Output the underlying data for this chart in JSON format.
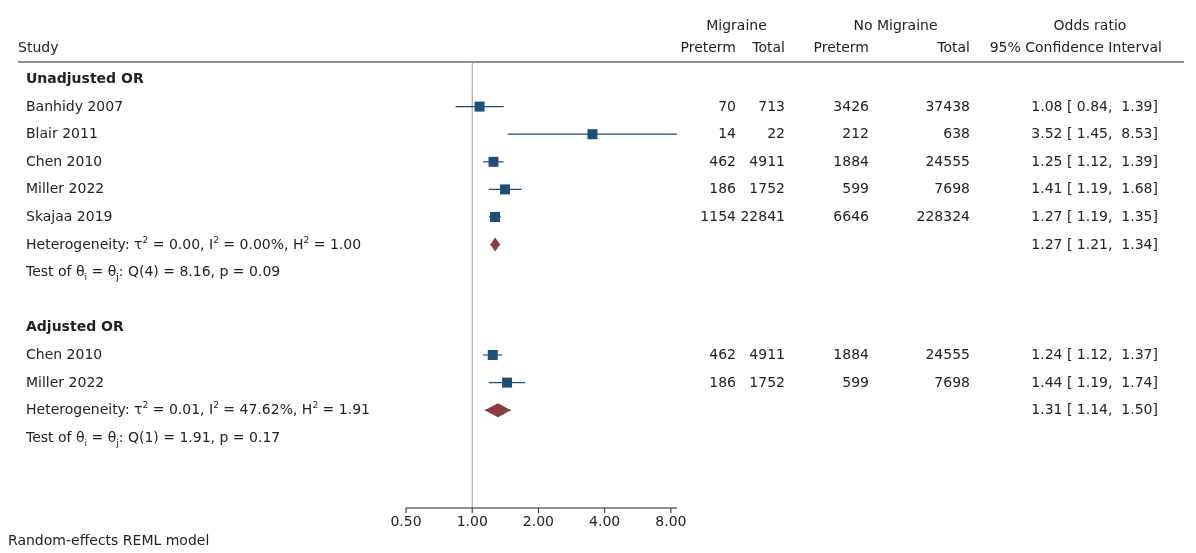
{
  "chart_data": [
    {
      "type": "scatter",
      "orientation": "horizontal",
      "ylabel": "Study",
      "categories": [
        "Unadjusted OR",
        "Banhidy 2007",
        "Blair 2011",
        "Chen 2010",
        "Miller 2022",
        "Skajaa 2019",
        "Heterogeneity: τ$^{2}$ = 0.00, I$^{2}$ = 0.00%, H$^{2}$ = 1.00",
        "Test of θ$_{i}$ = θ$_{j}$: Q(4) = 8.16, p = 0.09",
        null,
        "Adjusted OR",
        "Chen 2010",
        "Miller 2022",
        "Heterogeneity: τ$^{2}$ = 0.01, I$^{2}$ = 47.62%, H$^{2}$ = 1.91",
        "Test of θ$_{i}$ = θ$_{j}$: Q(1) = 1.91, p = 0.17",
        null,
        null
      ],
      "series": [
        {
          "marker": "square",
          "color": "#1f4e79",
          "values": [
            null,
            1.08,
            3.52,
            1.25,
            1.41,
            1.27,
            null,
            null,
            null,
            null,
            1.24,
            1.44,
            null,
            null,
            null,
            null
          ],
          "errors": [
            null,
            [
              0.84,
              1.39
            ],
            [
              1.45,
              8.53
            ],
            [
              1.12,
              1.39
            ],
            [
              1.19,
              1.68
            ],
            [
              1.19,
              1.35
            ],
            null,
            null,
            null,
            null,
            [
              1.12,
              1.37
            ],
            [
              1.19,
              1.74
            ],
            null,
            null,
            null,
            null
          ]
        },
        {
          "marker": "diamond",
          "color": "#8b3a3e",
          "values": [
            null,
            null,
            null,
            null,
            null,
            null,
            1.27,
            null,
            null,
            null,
            null,
            null,
            1.31,
            null,
            null,
            null
          ],
          "errors": [
            null,
            null,
            null,
            null,
            null,
            null,
            [
              1.21,
              1.34
            ],
            null,
            null,
            null,
            null,
            null,
            [
              1.14,
              1.5
            ],
            null,
            null,
            null
          ]
        }
      ],
      "annotations": [
        "Random-effects REML model"
      ],
      "log": "x",
      "xlim": [
        0.5,
        8.53
      ],
      "xticks": [
        {
          "value": 0.5,
          "label": "0.50"
        },
        {
          "value": 1,
          "label": "1.00"
        },
        {
          "value": 2,
          "label": "2.00"
        },
        {
          "value": 4,
          "label": "4.00"
        },
        {
          "value": 8,
          "label": "8.00"
        }
      ],
      "ref_lines": [
        {
          "axis": "x",
          "value": 1,
          "color": "#999999"
        }
      ]
    },
    {
      "type": "other",
      "annotations": [
        "Migraine",
        "No Migraine",
        "Odds ratio",
        "Preterm",
        "Total",
        "Preterm",
        "Total",
        "95% Confidence Interval",
        "70",
        "713",
        "3426",
        "37438",
        "1.08 [ 0.84,  1.39]",
        "14",
        "22",
        "212",
        "638",
        "3.52 [ 1.45,  8.53]",
        "462",
        "4911",
        "1884",
        "24555",
        "1.25 [ 1.12,  1.39]",
        "186",
        "1752",
        "599",
        "7698",
        "1.41 [ 1.19,  1.68]",
        "1154",
        "22841",
        "6646",
        "228324",
        "1.27 [ 1.19,  1.35]",
        "1.27 [ 1.21,  1.34]",
        "462",
        "4911",
        "1884",
        "24555",
        "1.24 [ 1.12,  1.37]",
        "186",
        "1752",
        "599",
        "7698",
        "1.44 [ 1.19,  1.74]",
        "1.31 [ 1.14,  1.50]"
      ]
    }
  ]
}
